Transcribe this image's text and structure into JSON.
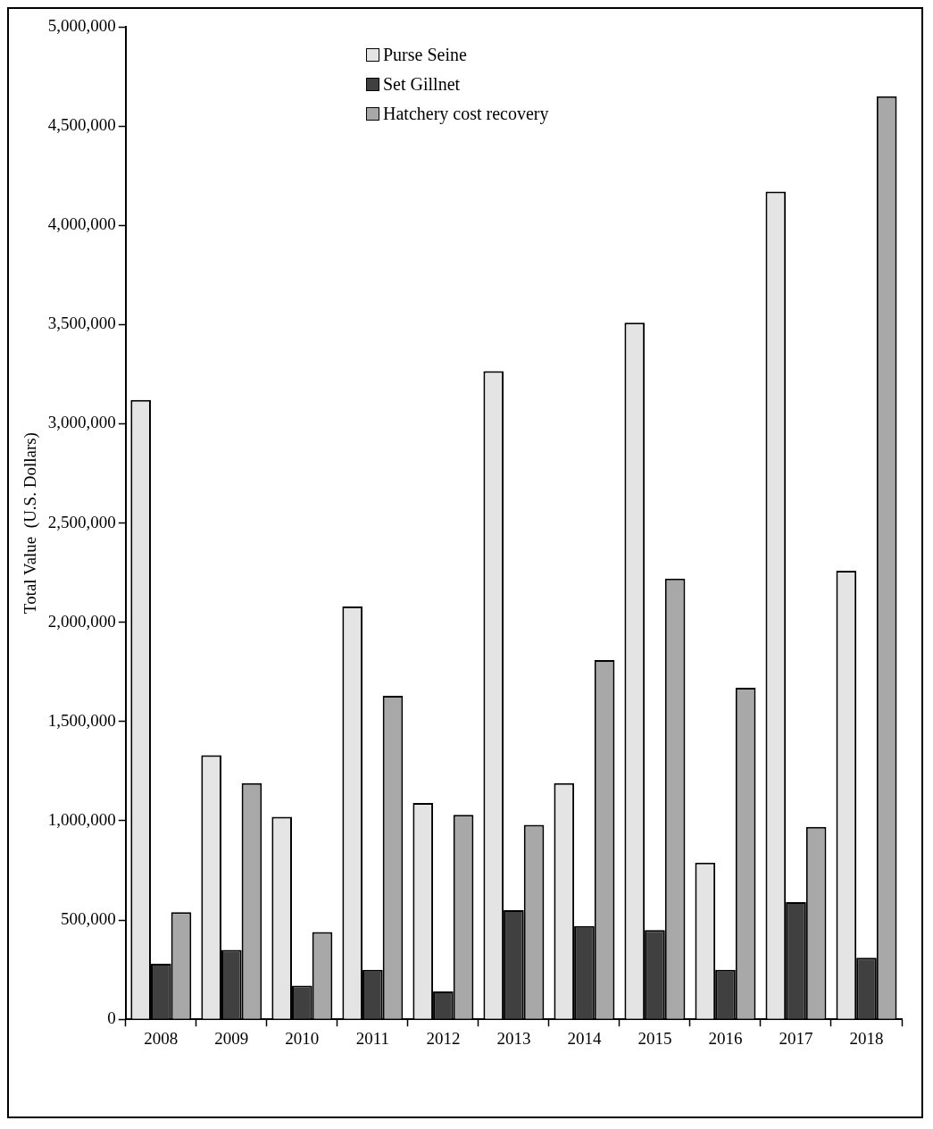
{
  "chart_data": {
    "type": "bar",
    "ylabel": "Total Value  (U.S. Dollars)",
    "categories": [
      "2008",
      "2009",
      "2010",
      "2011",
      "2012",
      "2013",
      "2014",
      "2015",
      "2016",
      "2017",
      "2018"
    ],
    "series": [
      {
        "name": "Purse Seine",
        "color": "#e4e4e4",
        "values": [
          3120000,
          1330000,
          1020000,
          2080000,
          1090000,
          3265000,
          1190000,
          3510000,
          790000,
          4170000,
          2260000
        ]
      },
      {
        "name": "Set Gillnet",
        "color": "#404040",
        "values": [
          280000,
          350000,
          170000,
          250000,
          140000,
          550000,
          470000,
          450000,
          250000,
          590000,
          310000
        ]
      },
      {
        "name": "Hatchery cost recovery",
        "color": "#a8a8a8",
        "values": [
          540000,
          1190000,
          440000,
          1630000,
          1030000,
          980000,
          1810000,
          2220000,
          1670000,
          970000,
          4650000
        ]
      }
    ],
    "ylim": [
      0,
      5000000
    ],
    "yticks": [
      0,
      {
        "value": 500000,
        "label": "500,000"
      },
      {
        "value": 1000000,
        "label": "1,000,000"
      },
      {
        "value": 1500000,
        "label": "1,500,000"
      },
      {
        "value": 2000000,
        "label": "2,000,000"
      },
      {
        "value": 2500000,
        "label": "2,500,000"
      },
      {
        "value": 3000000,
        "label": "3,000,000"
      },
      {
        "value": 3500000,
        "label": "3,500,000"
      },
      {
        "value": 4000000,
        "label": "4,000,000"
      },
      {
        "value": 4500000,
        "label": "4,500,000"
      },
      {
        "value": 5000000,
        "label": "5,000,000"
      }
    ],
    "grid": false,
    "legend": "top"
  }
}
